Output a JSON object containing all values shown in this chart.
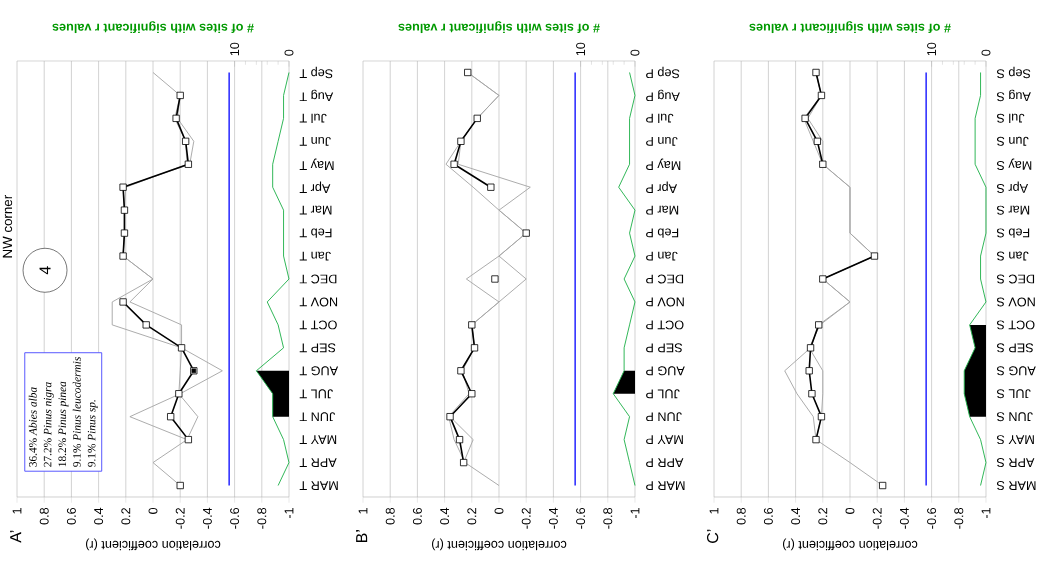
{
  "chart_data": [
    {
      "type": "line",
      "orientation": "horizontal",
      "title": "A’",
      "xlabel": "correlation coefficient (r)",
      "x2label": "# of sites with significant r values",
      "categories": [
        "Sep T",
        "Aug T",
        "Jul T",
        "Jun T",
        "May T",
        "Apr T",
        "Mar T",
        "Feb T",
        "Jan T",
        "DEC T",
        "NOV T",
        "OCT T",
        "SEP T",
        "AUG T",
        "JUL T",
        "JUN T",
        "MAY T",
        "APR T",
        "MAR T"
      ],
      "series": [
        {
          "color": "#a6a6a6",
          "marker": "none",
          "values": [
            0,
            -0.2,
            -0.18,
            -0.3,
            -0.27,
            0.22,
            0.21,
            0.21,
            0.22,
            0,
            0.17,
            -0.21,
            -0.21,
            -0.51,
            -0.2,
            0.17,
            -0.25,
            0,
            -0.2
          ]
        },
        {
          "color": "#a6a6a6",
          "marker": "none",
          "values": [
            null,
            -0.2,
            -0.16,
            -0.24,
            -0.25,
            0.2,
            0.21,
            0.21,
            0.22,
            0,
            0.3,
            0.3,
            -0.21,
            -0.2,
            -0.19,
            -0.33,
            -0.25,
            null,
            null
          ]
        },
        {
          "color": "#000000",
          "marker": "square",
          "values": [
            null,
            -0.2,
            -0.17,
            -0.24,
            -0.26,
            0.22,
            0.21,
            0.21,
            0.22,
            null,
            0.22,
            0.05,
            -0.21,
            -0.3,
            -0.19,
            -0.13,
            -0.26,
            null,
            -0.2
          ]
        },
        {
          "type": "scatter",
          "color": "#000000",
          "marker": "square",
          "values": [
            null,
            null,
            null,
            null,
            null,
            null,
            null,
            null,
            null,
            null,
            null,
            null,
            null,
            -0.3,
            null,
            null,
            null,
            null,
            null
          ]
        },
        {
          "type": "area",
          "axis": "x2",
          "color": "#000000",
          "values": [
            null,
            null,
            null,
            null,
            null,
            null,
            null,
            null,
            null,
            null,
            null,
            null,
            null,
            6,
            3,
            3,
            null,
            null,
            null
          ]
        },
        {
          "axis": "x2",
          "color": "#22b14c",
          "marker": "none",
          "values": [
            0,
            1,
            1,
            2,
            3,
            3,
            1,
            1,
            1,
            0,
            4,
            2,
            1,
            6,
            3,
            3,
            1,
            0,
            2
          ]
        }
      ],
      "xlim": [
        1,
        -1
      ],
      "xticks": [
        1,
        0.8,
        0.6,
        0.4,
        0.2,
        0,
        -0.2,
        -0.4,
        -0.6,
        -0.8,
        -1
      ],
      "x2lim": [
        50,
        0
      ],
      "x2ticks": [
        10,
        0
      ],
      "grid": "x",
      "ref_lines": [
        {
          "axis": "x2",
          "value": 11,
          "color": "#3333ff"
        }
      ],
      "annotations": [
        "NW corner",
        "4",
        "36.4% *Abies alba*",
        "27.2% *Pinus nigra*",
        "18.2% *Pinus pinea*",
        "9.1% *Pinus leucodermis*",
        "9.1% *Pinus sp.*"
      ]
    },
    {
      "type": "line",
      "orientation": "horizontal",
      "title": "B’",
      "xlabel": "correlation coefficient (r)",
      "x2label": "# of sites with significant r values",
      "categories": [
        "Sep P",
        "Aug P",
        "Jul P",
        "Jun P",
        "May P",
        "Apr P",
        "Mar P",
        "Feb P",
        "Jan P",
        "DEC P",
        "NOV P",
        "OCT P",
        "SEP P",
        "AUG P",
        "JUL P",
        "JUN P",
        "MAY P",
        "APR P",
        "MAR P"
      ],
      "series": [
        {
          "color": "#a6a6a6",
          "marker": "none",
          "values": [
            0.23,
            0,
            0.16,
            0.28,
            0.3,
            -0.23,
            0,
            -0.2,
            0,
            0.24,
            0,
            0.2,
            0.18,
            0.27,
            0.22,
            0.37,
            0.33,
            0.25,
            0
          ]
        },
        {
          "color": "#a6a6a6",
          "marker": "none",
          "values": [
            0.23,
            0,
            0.16,
            0.28,
            0.39,
            0.19,
            0,
            -0.2,
            0,
            -0.2,
            0,
            0.2,
            0.18,
            0.28,
            0.2,
            0.36,
            0.19,
            0.26,
            null
          ]
        },
        {
          "color": "#000000",
          "marker": "square",
          "values": [
            0.23,
            null,
            0.16,
            0.28,
            0.33,
            0.06,
            null,
            -0.2,
            null,
            0.03,
            null,
            0.2,
            0.18,
            0.28,
            0.2,
            0.36,
            0.29,
            0.26,
            null
          ]
        },
        {
          "type": "area",
          "axis": "x2",
          "color": "#000000",
          "values": [
            null,
            null,
            null,
            null,
            null,
            null,
            null,
            null,
            null,
            null,
            null,
            null,
            null,
            2,
            4,
            null,
            null,
            null,
            null
          ]
        },
        {
          "axis": "x2",
          "color": "#22b14c",
          "marker": "none",
          "values": [
            1,
            0,
            1,
            1,
            1,
            3,
            0,
            1,
            0,
            2,
            0,
            1,
            2,
            2,
            4,
            1,
            2,
            1,
            0
          ]
        }
      ],
      "xlim": [
        1,
        -1
      ],
      "xticks": [
        1,
        0.8,
        0.6,
        0.4,
        0.2,
        0,
        -0.2,
        -0.4,
        -0.6,
        -0.8,
        -1
      ],
      "x2lim": [
        50,
        0
      ],
      "x2ticks": [
        10,
        0
      ],
      "grid": "x",
      "ref_lines": [
        {
          "axis": "x2",
          "value": 11,
          "color": "#3333ff"
        }
      ]
    },
    {
      "type": "line",
      "orientation": "horizontal",
      "title": "C’",
      "xlabel": "correlation coefficient (r)",
      "x2label": "# of sites with significant r values",
      "categories": [
        "Sep S",
        "Aug S",
        "Jul S",
        "Jun S",
        "May S",
        "Apr S",
        "Mar S",
        "Feb S",
        "Jan S",
        "DEC S",
        "NOV S",
        "OCT S",
        "SEP S",
        "AUG S",
        "JUL S",
        "JUN S",
        "MAY S",
        "APR S",
        "MAR S"
      ],
      "series": [
        {
          "color": "#a6a6a6",
          "marker": "none",
          "values": [
            0.25,
            0.21,
            0.34,
            0.27,
            0.2,
            0,
            0,
            0,
            -0.18,
            0.2,
            0,
            0.23,
            0.29,
            0.48,
            0.39,
            0.27,
            0.25,
            0,
            -0.24
          ]
        },
        {
          "color": "#a6a6a6",
          "marker": "none",
          "values": [
            0.25,
            0.21,
            0.31,
            0.2,
            0.2,
            0,
            0,
            0,
            -0.18,
            0.2,
            0,
            0.22,
            0.3,
            0.2,
            0.2,
            0.21,
            0.25,
            null,
            null
          ]
        },
        {
          "color": "#000000",
          "marker": "square",
          "values": [
            0.25,
            0.21,
            0.33,
            0.24,
            0.2,
            null,
            null,
            null,
            -0.18,
            0.2,
            null,
            0.23,
            0.29,
            0.3,
            0.28,
            0.21,
            0.25,
            null,
            -0.24
          ]
        },
        {
          "type": "area",
          "axis": "x2",
          "color": "#000000",
          "values": [
            null,
            null,
            null,
            null,
            null,
            null,
            null,
            null,
            null,
            null,
            null,
            3,
            2,
            4,
            4,
            3,
            null,
            null,
            null
          ]
        },
        {
          "axis": "x2",
          "color": "#22b14c",
          "marker": "none",
          "values": [
            1,
            1,
            2,
            2,
            2,
            0,
            0,
            0,
            1,
            1,
            0,
            3,
            2,
            4,
            4,
            3,
            1,
            0,
            1
          ]
        }
      ],
      "xlim": [
        1,
        -1
      ],
      "xticks": [
        1,
        0.8,
        0.6,
        0.4,
        0.2,
        0,
        -0.2,
        -0.4,
        -0.6,
        -0.8,
        -1
      ],
      "x2lim": [
        50,
        0
      ],
      "x2ticks": [
        10,
        0
      ],
      "grid": "x",
      "ref_lines": [
        {
          "axis": "x2",
          "value": 11,
          "color": "#3333ff"
        }
      ]
    }
  ]
}
